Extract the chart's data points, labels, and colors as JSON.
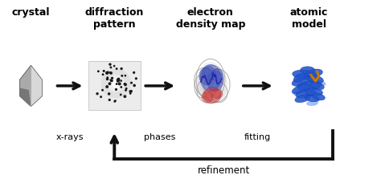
{
  "background_color": "#ffffff",
  "fig_width": 4.74,
  "fig_height": 2.23,
  "dpi": 100,
  "stages": [
    "crystal",
    "diffraction\npattern",
    "electron\ndensity map",
    "atomic\nmodel"
  ],
  "stage_fontsize": 9.0,
  "stage_fontweight": "bold",
  "arrow_labels": [
    "x-rays",
    "phases",
    "fitting"
  ],
  "arrow_label_fontsize": 8.0,
  "refinement_label": "refinement",
  "refinement_label_fontsize": 8.5,
  "crystal_color": "#aaaaaa",
  "protein_color": "#3366cc",
  "arrow_color": "#111111"
}
